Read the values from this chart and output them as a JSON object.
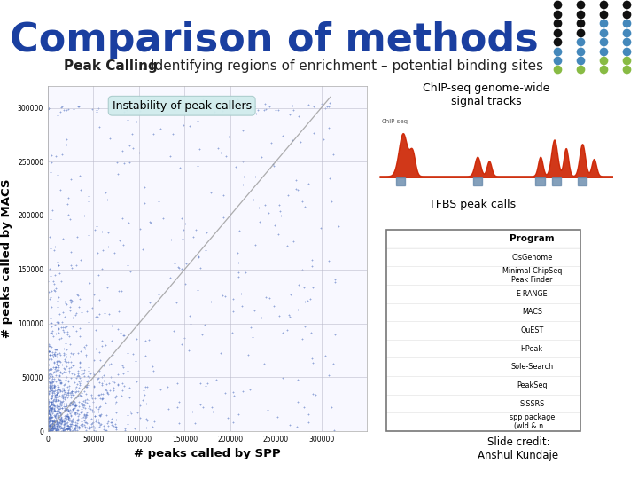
{
  "title": "Comparison of methods",
  "subtitle_bold": "Peak Calling",
  "subtitle_rest": ": Identifying regions of enrichment – potential binding sites",
  "title_color": "#1a3fa0",
  "subtitle_color": "#222222",
  "bg_color": "#ffffff",
  "scatter_annotation": "Instability of peak callers",
  "scatter_annotation_bg": "#d0ecec",
  "xlabel": "# peaks called by SPP",
  "ylabel": "# peaks called by MACS",
  "xlim": [
    0,
    350000
  ],
  "ylim": [
    0,
    320000
  ],
  "xticks": [
    0,
    50000,
    100000,
    150000,
    200000,
    250000,
    300000
  ],
  "yticks": [
    0,
    50000,
    100000,
    150000,
    200000,
    250000,
    300000
  ],
  "ytick_labels": [
    "0",
    "50000",
    "100000",
    "150000",
    "200000",
    "250000",
    "300000"
  ],
  "dot_color": "#4466bb",
  "dot_alpha": 0.55,
  "dot_size": 3,
  "diagonal_color": "#999999",
  "chipseq_box_bg": "#9999cc",
  "chipseq_box_text": "ChIP-seq genome-wide\nsignal tracks",
  "tfbs_box_bg": "#d0ecec",
  "tfbs_box_text": "TFBS peak calls",
  "table_programs": [
    "CisGenome",
    "Minimal ChipSeq\nPeak Finder",
    "E-RANGE",
    "MACS",
    "QuEST",
    "HPeak",
    "Sole-Search",
    "PeakSeq",
    "SISSRS",
    "spp package\n(wld & n..."
  ],
  "table_header": "Program",
  "slide_credit_bg": "#d0ecec",
  "slide_credit_text": "Slide credit:\nAnshul Kundaje",
  "title_fontsize": 32,
  "subtitle_fontsize": 11,
  "separator_color": "#334488",
  "signal_bg": "#fff5e6",
  "signal_color": "#cc2200",
  "dot_dec": [
    [
      0,
      0,
      "#111111"
    ],
    [
      0,
      1,
      "#111111"
    ],
    [
      0,
      2,
      "#111111"
    ],
    [
      0,
      3,
      "#111111"
    ],
    [
      1,
      0,
      "#111111"
    ],
    [
      1,
      1,
      "#111111"
    ],
    [
      1,
      2,
      "#111111"
    ],
    [
      1,
      3,
      "#111111"
    ],
    [
      2,
      0,
      "#111111"
    ],
    [
      2,
      1,
      "#111111"
    ],
    [
      2,
      2,
      "#4488bb"
    ],
    [
      2,
      3,
      "#4488bb"
    ],
    [
      3,
      0,
      "#111111"
    ],
    [
      3,
      1,
      "#111111"
    ],
    [
      3,
      2,
      "#4488bb"
    ],
    [
      3,
      3,
      "#4488bb"
    ],
    [
      4,
      0,
      "#111111"
    ],
    [
      4,
      1,
      "#4488bb"
    ],
    [
      4,
      2,
      "#4488bb"
    ],
    [
      4,
      3,
      "#4488bb"
    ],
    [
      5,
      0,
      "#4488bb"
    ],
    [
      5,
      1,
      "#4488bb"
    ],
    [
      5,
      2,
      "#4488bb"
    ],
    [
      5,
      3,
      "#4488bb"
    ],
    [
      6,
      0,
      "#4488bb"
    ],
    [
      6,
      1,
      "#4488bb"
    ],
    [
      6,
      2,
      "#88bb44"
    ],
    [
      6,
      3,
      "#88bb44"
    ],
    [
      7,
      0,
      "#88bb44"
    ],
    [
      7,
      1,
      "#88bb44"
    ],
    [
      7,
      2,
      "#88bb44"
    ],
    [
      7,
      3,
      "#88bb44"
    ]
  ]
}
